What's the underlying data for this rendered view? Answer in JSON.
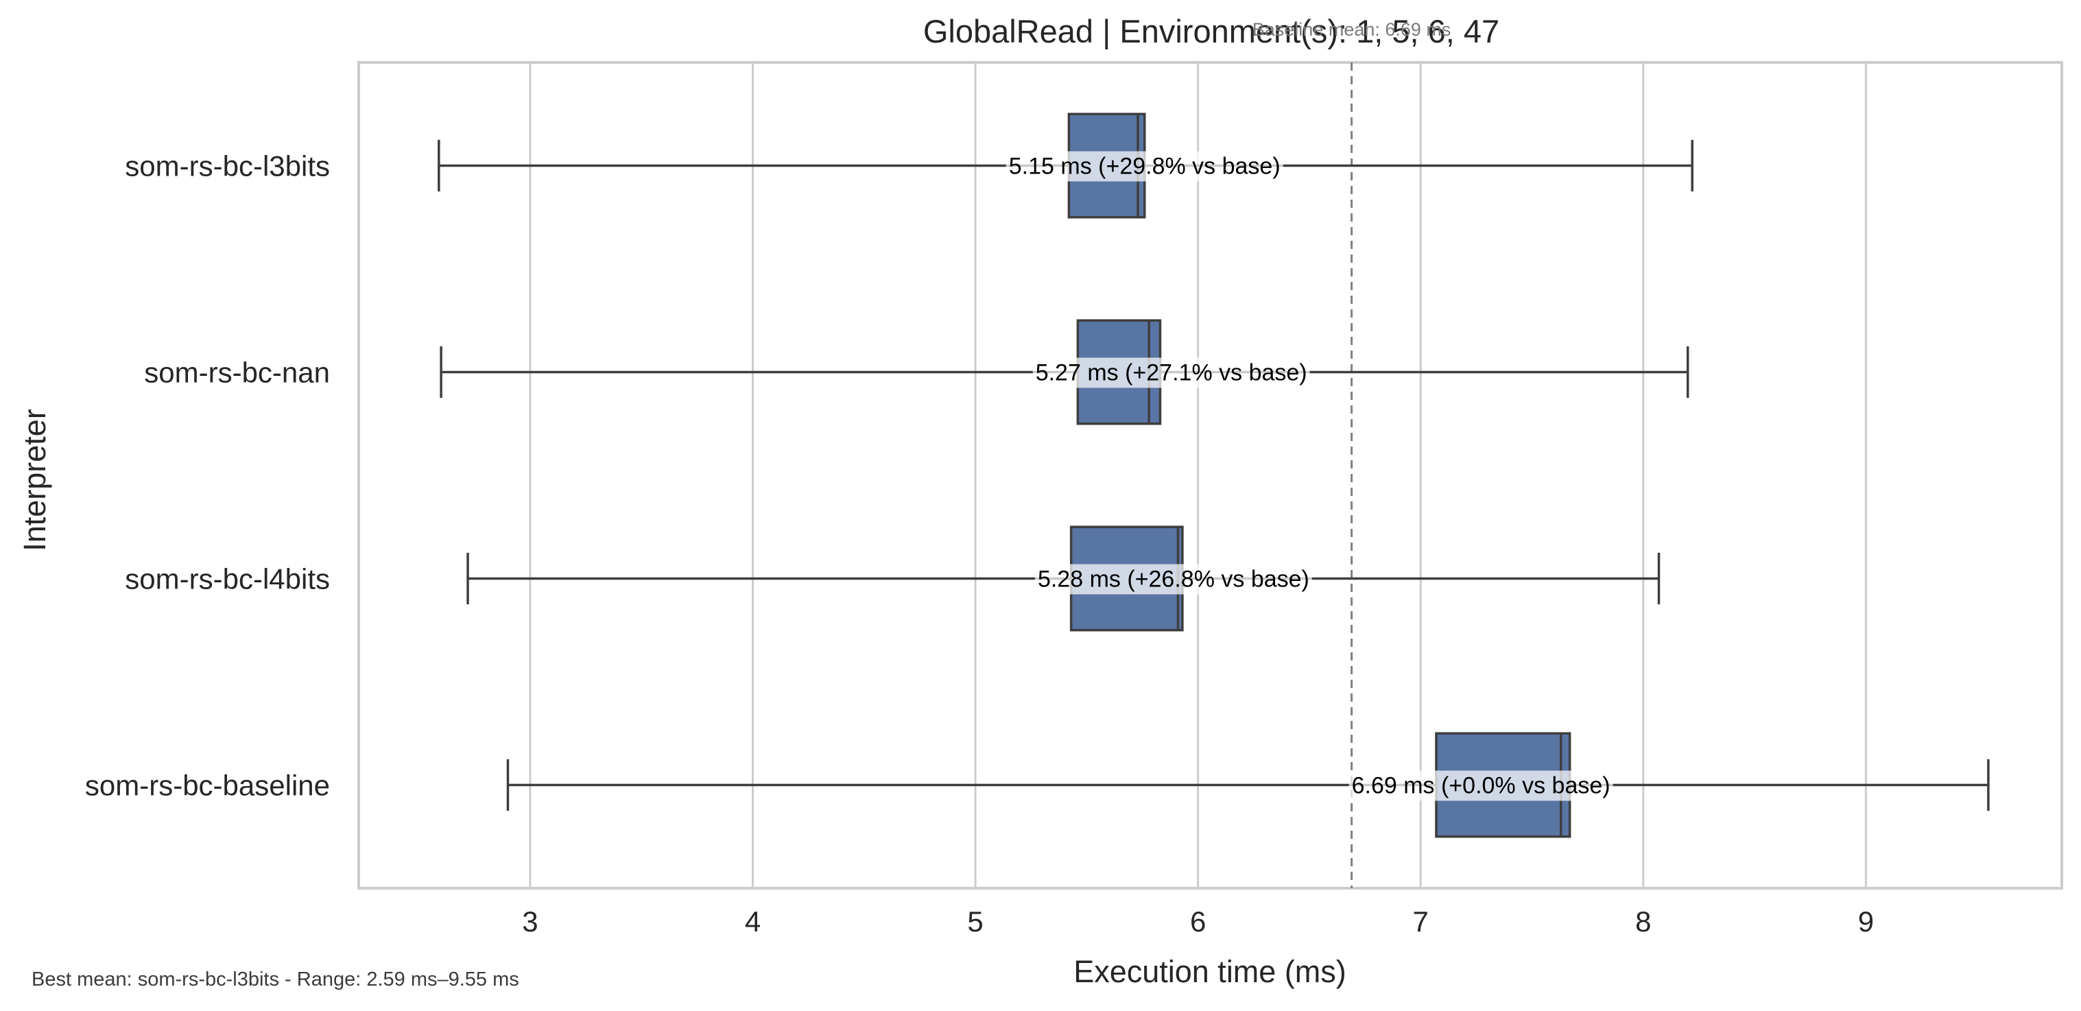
{
  "chart_data": {
    "type": "box",
    "title": "GlobalRead | Environment(s): 1, 5, 6, 47",
    "baseline_label": "Baseline mean: 6.69 ms",
    "baseline_value": 6.69,
    "xlabel": "Execution time (ms)",
    "ylabel": "Interpreter",
    "xlim": [
      2.23,
      9.88
    ],
    "xticks": [
      3,
      4,
      5,
      6,
      7,
      8,
      9
    ],
    "xtick_labels": [
      "3",
      "4",
      "5",
      "6",
      "7",
      "8",
      "9"
    ],
    "grid": "vertical",
    "footer": "Best mean: som-rs-bc-l3bits - Range: 2.59 ms–9.55 ms",
    "categories": [
      "som-rs-bc-l3bits",
      "som-rs-bc-nan",
      "som-rs-bc-l4bits",
      "som-rs-bc-baseline"
    ],
    "series": [
      {
        "name": "som-rs-bc-l3bits",
        "whisker_low": 2.59,
        "q1": 5.42,
        "median": 5.73,
        "q3": 5.76,
        "whisker_high": 8.22,
        "mean": 5.15,
        "label": "5.15 ms  (+29.8% vs base)"
      },
      {
        "name": "som-rs-bc-nan",
        "whisker_low": 2.6,
        "q1": 5.46,
        "median": 5.78,
        "q3": 5.83,
        "whisker_high": 8.2,
        "mean": 5.27,
        "label": "5.27 ms  (+27.1% vs base)"
      },
      {
        "name": "som-rs-bc-l4bits",
        "whisker_low": 2.72,
        "q1": 5.43,
        "median": 5.91,
        "q3": 5.93,
        "whisker_high": 8.07,
        "mean": 5.28,
        "label": "5.28 ms  (+26.8% vs base)"
      },
      {
        "name": "som-rs-bc-baseline",
        "whisker_low": 2.9,
        "q1": 7.07,
        "median": 7.63,
        "q3": 7.67,
        "whisker_high": 9.55,
        "mean": 6.69,
        "label": "6.69 ms  (+0.0% vs base)"
      }
    ],
    "colors": {
      "box_fill": "#5975a4",
      "box_edge": "#3e3e3e",
      "whisker": "#3e3e3e",
      "grid": "#cccccc",
      "frame": "#cccccc",
      "baseline_line": "#808080",
      "label_bg": "#ffffff"
    }
  }
}
